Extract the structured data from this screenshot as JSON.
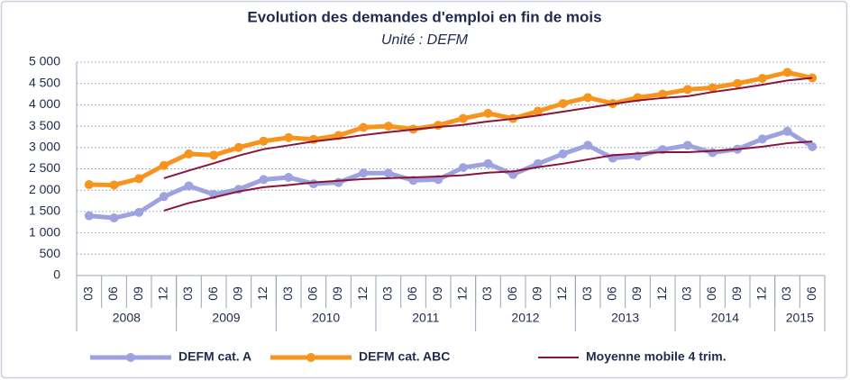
{
  "chart_data": {
    "type": "line",
    "title": "Evolution des demandes d'emploi en fin de mois",
    "subtitle": "Unité : DEFM",
    "categories": [
      "03",
      "06",
      "09",
      "12",
      "03",
      "06",
      "09",
      "12",
      "03",
      "06",
      "09",
      "12",
      "03",
      "06",
      "09",
      "12",
      "03",
      "06",
      "09",
      "12",
      "03",
      "06",
      "09",
      "12",
      "03",
      "06",
      "09",
      "12",
      "03",
      "06"
    ],
    "groups": [
      {
        "name": "2008",
        "count": 4
      },
      {
        "name": "2009",
        "count": 4
      },
      {
        "name": "2010",
        "count": 4
      },
      {
        "name": "2011",
        "count": 4
      },
      {
        "name": "2012",
        "count": 4
      },
      {
        "name": "2013",
        "count": 4
      },
      {
        "name": "2014",
        "count": 4
      },
      {
        "name": "2015",
        "count": 2
      }
    ],
    "ylim": [
      0,
      5000
    ],
    "yticks": [
      0,
      500,
      {
        "value": 1000,
        "label": "1 000"
      },
      {
        "value": 1500,
        "label": "1 500"
      },
      {
        "value": 2000,
        "label": "2 000"
      },
      {
        "value": 2500,
        "label": "2 500"
      },
      {
        "value": 3000,
        "label": "3 000"
      },
      {
        "value": 3500,
        "label": "3 500"
      },
      {
        "value": 4000,
        "label": "4 000"
      },
      {
        "value": 4500,
        "label": "4 500"
      },
      {
        "value": 5000,
        "label": "5 000"
      }
    ],
    "grid": true,
    "legend": "bottom",
    "series": [
      {
        "name": "DEFM cat. A",
        "color": "#9ea2df",
        "markers": true,
        "values": [
          1400,
          1350,
          1480,
          1850,
          2100,
          1900,
          2020,
          2250,
          2300,
          2150,
          2180,
          2400,
          2400,
          2230,
          2250,
          2530,
          2620,
          2370,
          2620,
          2850,
          3050,
          2750,
          2800,
          2950,
          3050,
          2880,
          2960,
          3200,
          3380,
          3020
        ]
      },
      {
        "name": "DEFM cat. ABC",
        "color": "#f7941d",
        "markers": true,
        "values": [
          2130,
          2120,
          2270,
          2580,
          2850,
          2820,
          3000,
          3150,
          3230,
          3190,
          3280,
          3470,
          3500,
          3430,
          3520,
          3680,
          3800,
          3680,
          3850,
          4030,
          4170,
          4030,
          4170,
          4250,
          4360,
          4400,
          4500,
          4620,
          4760,
          4630
        ]
      },
      {
        "name": "Moyenne mobile 4 trim.",
        "color": "#8b1538",
        "markers": false,
        "values": [
          null,
          null,
          null,
          1520,
          1700,
          1830,
          1970,
          2070,
          2120,
          2180,
          2220,
          2260,
          2280,
          2300,
          2320,
          2350,
          2410,
          2440,
          2540,
          2620,
          2720,
          2820,
          2860,
          2890,
          2890,
          2920,
          2960,
          3020,
          3100,
          3140
        ]
      },
      {
        "name": "Moyenne mobile 4 trim.",
        "color": "#8b1538",
        "markers": false,
        "values": [
          null,
          null,
          null,
          2280,
          2460,
          2630,
          2810,
          2960,
          3050,
          3140,
          3210,
          3290,
          3360,
          3420,
          3480,
          3530,
          3610,
          3670,
          3750,
          3840,
          3930,
          4020,
          4100,
          4160,
          4200,
          4300,
          4380,
          4470,
          4570,
          4630
        ]
      }
    ]
  }
}
